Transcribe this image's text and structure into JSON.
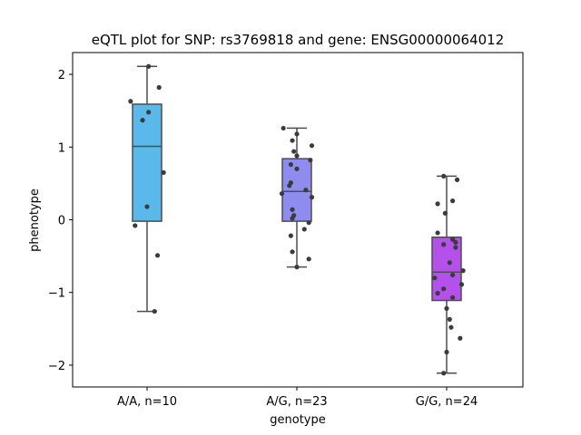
{
  "chart_data": {
    "type": "box",
    "title": "eQTL plot for SNP: rs3769818 and gene: ENSG00000064012",
    "xlabel": "genotype",
    "ylabel": "phenotype",
    "ylim": [
      -2.3,
      2.3
    ],
    "yticks": [
      -2,
      -1,
      0,
      1,
      2
    ],
    "ytick_labels": [
      "−2",
      "−1",
      "0",
      "1",
      "2"
    ],
    "categories": [
      "A/A, n=10",
      "A/G, n=23",
      "G/G, n=24"
    ],
    "boxes": [
      {
        "category": "A/A, n=10",
        "color": "#5ab8ea",
        "q1": -0.02,
        "median": 1.01,
        "q3": 1.59,
        "whisker_low": -1.26,
        "whisker_high": 2.11,
        "points": [
          {
            "jitter": 0.01,
            "y": 2.11
          },
          {
            "jitter": 0.08,
            "y": 1.82
          },
          {
            "jitter": -0.11,
            "y": 1.63
          },
          {
            "jitter": 0.01,
            "y": 1.48
          },
          {
            "jitter": -0.03,
            "y": 1.37
          },
          {
            "jitter": 0.11,
            "y": 0.65
          },
          {
            "jitter": 0.0,
            "y": 0.18
          },
          {
            "jitter": -0.08,
            "y": -0.08
          },
          {
            "jitter": 0.07,
            "y": -0.49
          },
          {
            "jitter": 0.05,
            "y": -1.26
          }
        ]
      },
      {
        "category": "A/G, n=23",
        "color": "#8f8cef",
        "q1": -0.02,
        "median": 0.39,
        "q3": 0.84,
        "whisker_low": -0.65,
        "whisker_high": 1.26,
        "points": [
          {
            "jitter": -0.09,
            "y": 1.26
          },
          {
            "jitter": 0.0,
            "y": 1.18
          },
          {
            "jitter": -0.03,
            "y": 1.09
          },
          {
            "jitter": 0.1,
            "y": 1.02
          },
          {
            "jitter": -0.02,
            "y": 0.94
          },
          {
            "jitter": 0.0,
            "y": 0.88
          },
          {
            "jitter": 0.09,
            "y": 0.82
          },
          {
            "jitter": -0.04,
            "y": 0.76
          },
          {
            "jitter": 0.0,
            "y": 0.7
          },
          {
            "jitter": -0.04,
            "y": 0.51
          },
          {
            "jitter": -0.05,
            "y": 0.47
          },
          {
            "jitter": 0.06,
            "y": 0.41
          },
          {
            "jitter": -0.1,
            "y": 0.36
          },
          {
            "jitter": 0.1,
            "y": 0.31
          },
          {
            "jitter": -0.03,
            "y": 0.14
          },
          {
            "jitter": -0.02,
            "y": 0.06
          },
          {
            "jitter": -0.03,
            "y": 0.02
          },
          {
            "jitter": 0.08,
            "y": -0.04
          },
          {
            "jitter": 0.05,
            "y": -0.13
          },
          {
            "jitter": -0.04,
            "y": -0.22
          },
          {
            "jitter": -0.03,
            "y": -0.44
          },
          {
            "jitter": 0.08,
            "y": -0.54
          },
          {
            "jitter": 0.0,
            "y": -0.65
          }
        ]
      },
      {
        "category": "G/G, n=24",
        "color": "#b451ea",
        "q1": -1.11,
        "median": -0.72,
        "q3": -0.24,
        "whisker_low": -2.11,
        "whisker_high": 0.6,
        "points": [
          {
            "jitter": -0.02,
            "y": 0.6
          },
          {
            "jitter": 0.07,
            "y": 0.55
          },
          {
            "jitter": 0.04,
            "y": 0.26
          },
          {
            "jitter": -0.06,
            "y": 0.22
          },
          {
            "jitter": -0.01,
            "y": 0.09
          },
          {
            "jitter": -0.06,
            "y": -0.18
          },
          {
            "jitter": 0.04,
            "y": -0.27
          },
          {
            "jitter": 0.06,
            "y": -0.31
          },
          {
            "jitter": -0.02,
            "y": -0.34
          },
          {
            "jitter": 0.06,
            "y": -0.38
          },
          {
            "jitter": 0.02,
            "y": -0.59
          },
          {
            "jitter": 0.11,
            "y": -0.7
          },
          {
            "jitter": 0.04,
            "y": -0.76
          },
          {
            "jitter": -0.08,
            "y": -0.8
          },
          {
            "jitter": 0.1,
            "y": -0.89
          },
          {
            "jitter": -0.02,
            "y": -0.95
          },
          {
            "jitter": -0.06,
            "y": -1.01
          },
          {
            "jitter": 0.04,
            "y": -1.07
          },
          {
            "jitter": 0.0,
            "y": -1.22
          },
          {
            "jitter": 0.02,
            "y": -1.37
          },
          {
            "jitter": 0.03,
            "y": -1.48
          },
          {
            "jitter": 0.09,
            "y": -1.63
          },
          {
            "jitter": 0.0,
            "y": -1.82
          },
          {
            "jitter": -0.02,
            "y": -2.11
          }
        ]
      }
    ],
    "style": {
      "line_color": "#4d4d4d",
      "point_color": "#3b3b3b",
      "axis_color": "#000000"
    }
  }
}
